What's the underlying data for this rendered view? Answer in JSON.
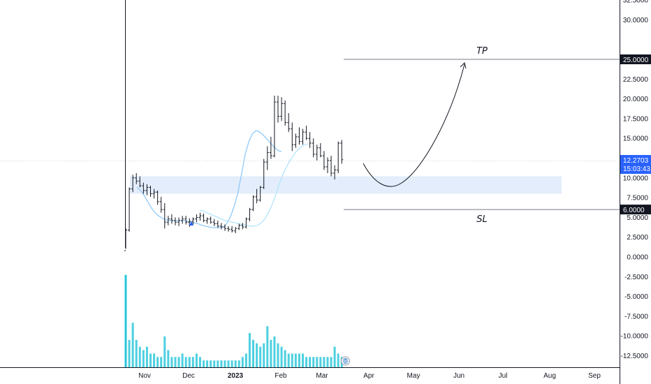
{
  "chart_data": {
    "type": "candlestick",
    "y_ticks": [
      "32.5000",
      "30.0000",
      "22.5000",
      "20.0000",
      "17.5000",
      "15.0000",
      "10.0000",
      "7.5000",
      "5.0000",
      "2.5000",
      "0.0000",
      "-2.5000",
      "-5.0000",
      "-7.5000",
      "-10.0000",
      "-12.5000"
    ],
    "x_ticks": [
      "Nov",
      "Dec",
      "2023",
      "Feb",
      "Mar",
      "Apr",
      "May",
      "Jun",
      "Jul",
      "Aug",
      "Sep"
    ],
    "current_price": {
      "value": "12.2703",
      "countdown": "15:03:43"
    },
    "target_level": {
      "value": "25.0000",
      "label": "TP"
    },
    "stop_level": {
      "value": "6.0000",
      "label": "SL"
    },
    "zone": {
      "low": 8.0,
      "high": 10.2
    },
    "price_bars": [
      [
        0.8,
        3.6,
        1.0,
        3.4
      ],
      [
        3.4,
        8.8,
        3.2,
        8.6
      ],
      [
        8.6,
        10.4,
        8.2,
        10.0
      ],
      [
        10.0,
        10.6,
        9.2,
        9.6
      ],
      [
        9.6,
        10.2,
        8.8,
        9.0
      ],
      [
        9.0,
        9.4,
        8.0,
        8.4
      ],
      [
        8.4,
        9.2,
        7.8,
        8.8
      ],
      [
        8.8,
        9.0,
        7.6,
        8.0
      ],
      [
        8.0,
        8.6,
        7.4,
        8.2
      ],
      [
        8.2,
        8.4,
        6.6,
        7.0
      ],
      [
        7.0,
        7.6,
        5.6,
        6.0
      ],
      [
        6.0,
        6.8,
        3.6,
        4.4
      ],
      [
        4.4,
        5.2,
        4.0,
        4.8
      ],
      [
        4.8,
        5.4,
        4.2,
        4.6
      ],
      [
        4.6,
        5.0,
        4.0,
        4.4
      ],
      [
        4.4,
        5.0,
        3.9,
        4.6
      ],
      [
        4.6,
        5.2,
        4.2,
        4.8
      ],
      [
        4.8,
        5.2,
        4.1,
        4.4
      ],
      [
        4.4,
        4.9,
        3.8,
        4.5
      ],
      [
        4.5,
        5.0,
        4.1,
        4.8
      ],
      [
        4.8,
        5.4,
        4.4,
        5.0
      ],
      [
        5.0,
        5.6,
        4.6,
        5.2
      ],
      [
        5.2,
        5.5,
        4.4,
        4.6
      ],
      [
        4.6,
        5.0,
        4.2,
        4.8
      ],
      [
        4.8,
        5.1,
        4.2,
        4.4
      ],
      [
        4.4,
        4.8,
        3.9,
        4.2
      ],
      [
        4.2,
        4.6,
        3.7,
        3.9
      ],
      [
        3.9,
        4.3,
        3.5,
        3.8
      ],
      [
        3.8,
        4.1,
        3.3,
        3.6
      ],
      [
        3.6,
        3.9,
        3.2,
        3.5
      ],
      [
        3.5,
        3.9,
        3.1,
        3.3
      ],
      [
        3.3,
        3.8,
        3.0,
        3.6
      ],
      [
        3.6,
        4.2,
        3.4,
        4.0
      ],
      [
        4.0,
        4.3,
        3.5,
        3.8
      ],
      [
        3.8,
        5.0,
        3.6,
        4.8
      ],
      [
        4.8,
        6.2,
        4.5,
        6.0
      ],
      [
        6.0,
        7.8,
        5.8,
        7.6
      ],
      [
        7.6,
        8.6,
        6.8,
        7.2
      ],
      [
        7.2,
        9.0,
        7.0,
        8.8
      ],
      [
        8.8,
        12.4,
        8.6,
        12.0
      ],
      [
        12.0,
        14.0,
        11.0,
        13.2
      ],
      [
        13.2,
        15.2,
        12.4,
        12.8
      ],
      [
        12.8,
        20.4,
        12.6,
        19.6
      ],
      [
        19.6,
        20.4,
        17.0,
        17.8
      ],
      [
        17.8,
        20.2,
        17.2,
        19.4
      ],
      [
        19.4,
        19.8,
        16.6,
        17.0
      ],
      [
        17.0,
        18.2,
        15.8,
        16.2
      ],
      [
        16.2,
        17.0,
        13.4,
        14.2
      ],
      [
        14.2,
        15.6,
        13.8,
        15.2
      ],
      [
        15.2,
        16.4,
        14.2,
        14.6
      ],
      [
        14.6,
        16.2,
        14.2,
        15.8
      ],
      [
        15.8,
        16.6,
        14.8,
        15.0
      ],
      [
        15.0,
        15.8,
        13.8,
        14.4
      ],
      [
        14.4,
        15.0,
        12.6,
        13.0
      ],
      [
        13.0,
        14.2,
        12.2,
        13.8
      ],
      [
        13.8,
        14.4,
        12.6,
        12.8
      ],
      [
        12.8,
        13.4,
        11.0,
        11.4
      ],
      [
        11.4,
        12.6,
        10.6,
        12.2
      ],
      [
        12.2,
        12.8,
        10.2,
        10.6
      ],
      [
        10.6,
        11.6,
        9.8,
        11.0
      ],
      [
        11.0,
        14.6,
        10.6,
        14.4
      ],
      [
        14.4,
        14.8,
        11.8,
        12.3
      ]
    ],
    "volume_bars": [
      27,
      8,
      13,
      8,
      6,
      5,
      6,
      4,
      4,
      3,
      3,
      9,
      5,
      3,
      3,
      3,
      4,
      3,
      3,
      3,
      4,
      3,
      2,
      2,
      2,
      2,
      2,
      2,
      2,
      2,
      2,
      2,
      2,
      3,
      4,
      10,
      8,
      7,
      6,
      7,
      12,
      8,
      9,
      7,
      6,
      5,
      4,
      4,
      4,
      4,
      4,
      3,
      3,
      3,
      3,
      3,
      3,
      3,
      3,
      6,
      4,
      3
    ],
    "series": [
      {
        "values": [
          8.8,
          8.4,
          7.8,
          7.0,
          6.2,
          5.6,
          5.2,
          4.9,
          4.7,
          4.6,
          4.6,
          4.6,
          4.6,
          4.6,
          4.5,
          4.4,
          4.3,
          4.2,
          4.0,
          3.9,
          3.8,
          3.7,
          3.7,
          3.7,
          3.8,
          4.3,
          5.2,
          6.5,
          8.2,
          10.6,
          13.0,
          14.6,
          15.6,
          16.0,
          15.8,
          15.4,
          14.9,
          14.4,
          13.9,
          13.5,
          13.3
        ]
      },
      {
        "values": [
          5.9,
          5.8,
          5.6,
          5.4,
          5.2,
          5.0,
          4.8,
          4.6,
          4.5,
          4.4,
          4.3,
          4.2,
          4.1,
          4.0,
          3.9,
          3.9,
          4.0,
          4.3,
          4.8,
          5.6,
          6.6,
          7.8,
          9.2,
          10.4,
          11.4,
          12.2,
          12.9,
          13.5,
          13.9,
          14.2,
          14.3
        ]
      }
    ]
  }
}
